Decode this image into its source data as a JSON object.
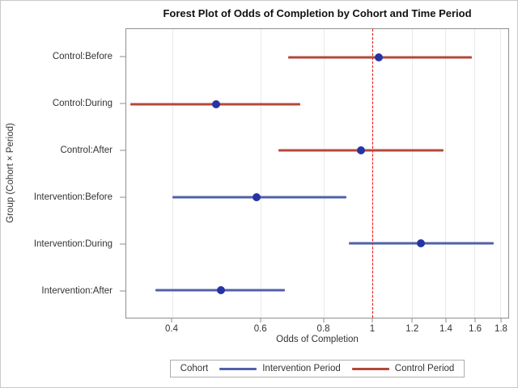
{
  "figure": {
    "background": "#ffffff",
    "border_color": "#c9c9c9"
  },
  "chart_data": {
    "type": "scatter",
    "subtype": "forest-plot",
    "title": "Forest Plot of Odds of Completion by Cohort and Time Period",
    "xlabel": "Odds of Completion",
    "ylabel": "Group (Cohort × Period)",
    "x_scale": "log",
    "xlim": [
      0.324,
      1.868
    ],
    "x_ticks": [
      0.4,
      0.6,
      0.8,
      1,
      1.2,
      1.4,
      1.6,
      1.8
    ],
    "x_tick_labels": [
      "0.4",
      "0.6",
      "0.8",
      "1",
      "1.2",
      "1.4",
      "1.6",
      "1.8"
    ],
    "grid": true,
    "gridline_color": "#e9e9e9",
    "frame_color": "#8f8f8f",
    "reference_line": {
      "x": 1,
      "color": "#ff0000",
      "style": "dashed"
    },
    "marker_color": "#2534a4",
    "series_colors": {
      "intervention": "#5261a8",
      "control": "#b5483b"
    },
    "rows": [
      {
        "label": "Control:Before",
        "group": "control",
        "estimate": 1.03,
        "ci_low": 0.68,
        "ci_high": 1.58
      },
      {
        "label": "Control:During",
        "group": "control",
        "estimate": 0.49,
        "ci_low": 0.33,
        "ci_high": 0.72
      },
      {
        "label": "Control:After",
        "group": "control",
        "estimate": 0.95,
        "ci_low": 0.65,
        "ci_high": 1.39
      },
      {
        "label": "Intervention:Before",
        "group": "intervention",
        "estimate": 0.59,
        "ci_low": 0.4,
        "ci_high": 0.89
      },
      {
        "label": "Intervention:During",
        "group": "intervention",
        "estimate": 1.25,
        "ci_low": 0.9,
        "ci_high": 1.75
      },
      {
        "label": "Intervention:After",
        "group": "intervention",
        "estimate": 0.5,
        "ci_low": 0.37,
        "ci_high": 0.67
      }
    ],
    "legend": {
      "title": "Cohort",
      "position": "bottom",
      "entries": [
        {
          "label": "Intervention Period",
          "color": "#5261a8"
        },
        {
          "label": "Control Period",
          "color": "#b5483b"
        }
      ]
    }
  }
}
